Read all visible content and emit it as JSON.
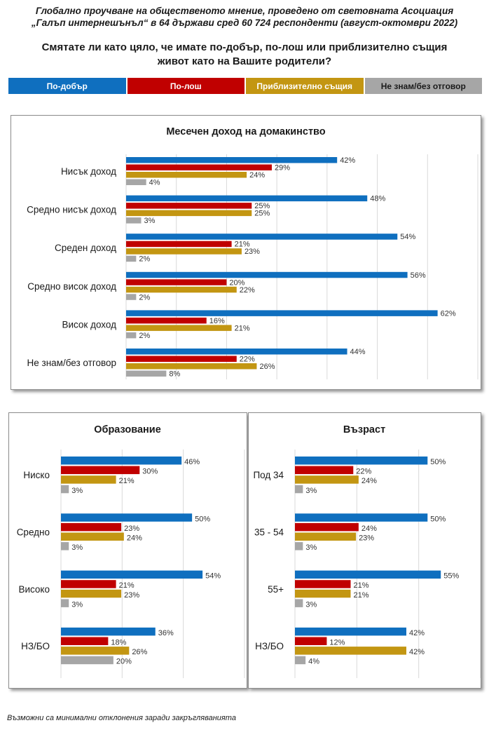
{
  "source_line1": "Глобално проучване на общественото мнение, проведено от световната Асоциация",
  "source_line2": "„Галъп интернешънъл“ в 64 държави сред 60 724 респонденти (август-октомври 2022)",
  "question_line1": "Смятате ли като цяло, че имате по-добър, по-лош или приблизително същия",
  "question_line2": "живот като на Вашите родители?",
  "legend": [
    {
      "label": "По-добър",
      "color": "#0f6fbf"
    },
    {
      "label": "По-лош",
      "color": "#c00000"
    },
    {
      "label": "Приблизително същия",
      "color": "#c39612"
    },
    {
      "label": "Не знам/без отговор",
      "color": "#a6a6a6"
    }
  ],
  "footnote": "Възможни са минимални отклонения заради закръгляванията",
  "chart_data": [
    {
      "type": "bar",
      "orientation": "horizontal",
      "title": "Месечен доход на домакинство",
      "categories": [
        "Нисък доход",
        "Средно нисък доход",
        "Среден доход",
        "Средно висок доход",
        "Висок доход",
        "Не знам/без отговор"
      ],
      "series": [
        {
          "name": "По-добър",
          "values": [
            42,
            48,
            54,
            56,
            62,
            44
          ]
        },
        {
          "name": "По-лош",
          "values": [
            29,
            25,
            21,
            20,
            16,
            22
          ]
        },
        {
          "name": "Приблизително същия",
          "values": [
            24,
            25,
            23,
            22,
            21,
            26
          ]
        },
        {
          "name": "Не знам/без отговор",
          "values": [
            4,
            3,
            2,
            2,
            2,
            8
          ]
        }
      ],
      "value_suffix": "%",
      "xlim": [
        0,
        70
      ]
    },
    {
      "type": "bar",
      "orientation": "horizontal",
      "title": "Образование",
      "categories": [
        "Ниско",
        "Средно",
        "Високо",
        "НЗ/БО"
      ],
      "series": [
        {
          "name": "По-добър",
          "values": [
            46,
            50,
            54,
            36
          ]
        },
        {
          "name": "По-лош",
          "values": [
            30,
            23,
            21,
            18
          ]
        },
        {
          "name": "Приблизително същия",
          "values": [
            21,
            24,
            23,
            26
          ]
        },
        {
          "name": "Не знам/без отговор",
          "values": [
            3,
            3,
            3,
            20
          ]
        }
      ],
      "value_suffix": "%",
      "xlim": [
        0,
        70
      ]
    },
    {
      "type": "bar",
      "orientation": "horizontal",
      "title": "Възраст",
      "categories": [
        "Под 34",
        "35 - 54",
        "55+",
        "НЗ/БО"
      ],
      "series": [
        {
          "name": "По-добър",
          "values": [
            50,
            50,
            55,
            42
          ]
        },
        {
          "name": "По-лош",
          "values": [
            22,
            24,
            21,
            12
          ]
        },
        {
          "name": "Приблизително същия",
          "values": [
            24,
            23,
            21,
            42
          ]
        },
        {
          "name": "Не знам/без отговор",
          "values": [
            3,
            3,
            3,
            4
          ]
        }
      ],
      "value_suffix": "%",
      "xlim": [
        0,
        70
      ]
    }
  ]
}
